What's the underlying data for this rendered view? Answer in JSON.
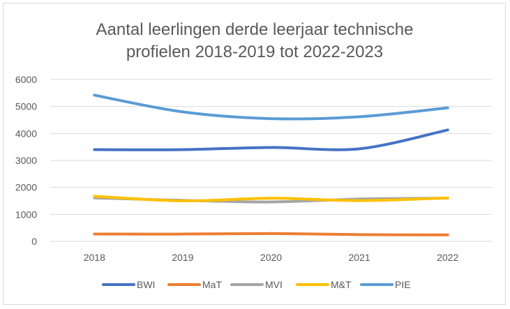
{
  "chart_data": {
    "type": "line",
    "title_lines": [
      "Aantal leerlingen derde leerjaar technische",
      "profielen 2018-2019 tot 2022-2023"
    ],
    "xlabel": "",
    "ylabel": "",
    "categories": [
      "2018",
      "2019",
      "2020",
      "2021",
      "2022"
    ],
    "y_ticks": [
      "0",
      "1000",
      "2000",
      "3000",
      "4000",
      "5000",
      "6000"
    ],
    "ylim": [
      0,
      6000
    ],
    "grid": true,
    "legend_position": "bottom",
    "series": [
      {
        "name": "BWI",
        "color": "#4472c4",
        "values": [
          3400,
          3400,
          3480,
          3430,
          4130
        ]
      },
      {
        "name": "MaT",
        "color": "#ed7d31",
        "values": [
          270,
          270,
          290,
          250,
          240
        ]
      },
      {
        "name": "MVI",
        "color": "#a5a5a5",
        "values": [
          1610,
          1520,
          1460,
          1570,
          1600
        ]
      },
      {
        "name": "M&T",
        "color": "#ffc000",
        "values": [
          1670,
          1500,
          1600,
          1510,
          1610
        ]
      },
      {
        "name": "PIE",
        "color": "#5b9bd5",
        "values": [
          5420,
          4800,
          4550,
          4620,
          4950
        ]
      }
    ]
  }
}
